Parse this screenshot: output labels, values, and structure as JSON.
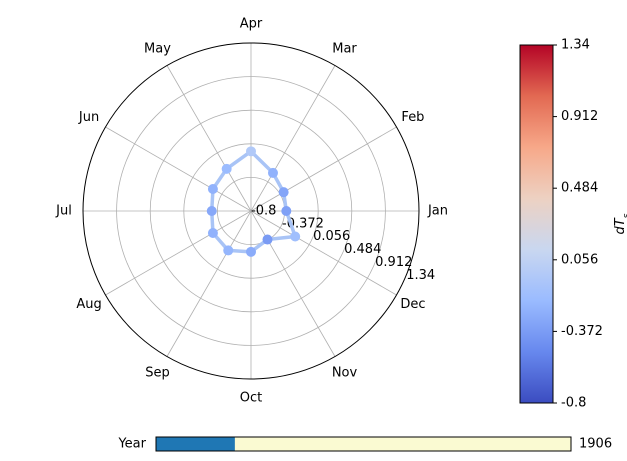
{
  "chart_data": {
    "type": "line",
    "projection": "polar",
    "direction": "counterclockwise",
    "start_angle_label": "Jan",
    "categories": [
      "Jan",
      "Feb",
      "Mar",
      "Apr",
      "May",
      "Jun",
      "Jul",
      "Aug",
      "Sep",
      "Oct",
      "Nov",
      "Dec"
    ],
    "series": [
      {
        "values": [
          -0.35,
          -0.32,
          -0.24,
          -0.04,
          -0.18,
          -0.24,
          -0.3,
          -0.24,
          -0.22,
          -0.28,
          -0.38,
          -0.15
        ]
      }
    ],
    "point_color_values": [
      -0.35,
      -0.32,
      -0.24,
      -0.04,
      -0.18,
      -0.24,
      -0.3,
      -0.24,
      -0.22,
      -0.28,
      -0.38,
      -0.15
    ],
    "line_color": "#a9c4f6",
    "r_range": [
      -0.8,
      1.34
    ],
    "r_tick_labels": [
      "-0.8",
      "-0.372",
      "0.056",
      "0.484",
      "0.912",
      "1.34"
    ],
    "grid": true,
    "colorbar": {
      "label": "dT",
      "label_subscript": "s",
      "range": [
        -0.8,
        1.34
      ],
      "tick_labels": [
        "-0.8",
        "-0.372",
        "0.056",
        "0.484",
        "0.912",
        "1.34"
      ],
      "colormap": "coolwarm",
      "stops": [
        "#3b4cc0",
        "#6788ee",
        "#9abbff",
        "#c9d7f0",
        "#edd1c2",
        "#f7a889",
        "#e26952",
        "#b40426"
      ]
    },
    "slider": {
      "label": "Year",
      "value_label": "1906",
      "fill_fraction": 0.19,
      "fill_color": "#1f77b4",
      "track_color": "#fafad2"
    }
  }
}
